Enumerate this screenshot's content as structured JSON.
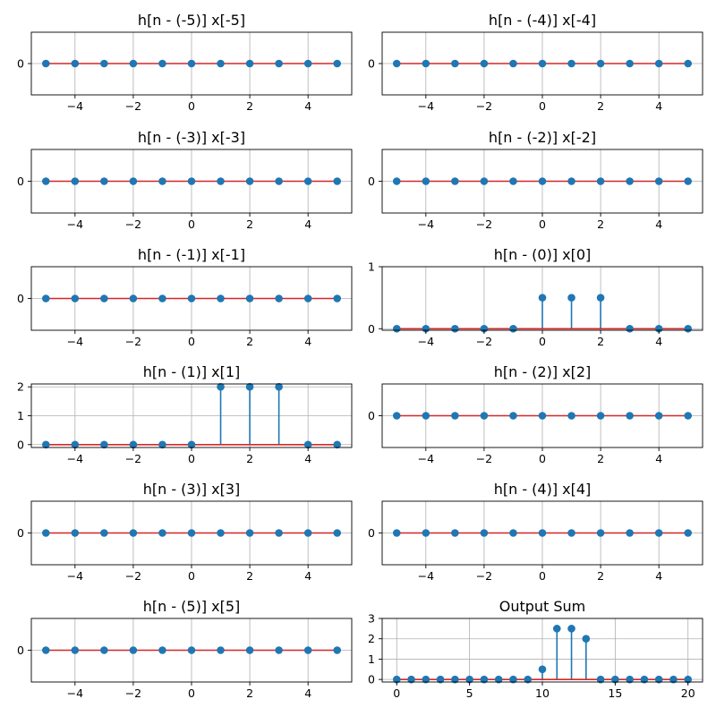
{
  "colors": {
    "stem": "#1f77b4",
    "marker": "#1f77b4",
    "baseline": "#d62728",
    "grid": "#b0b0b0",
    "axis": "#000000"
  },
  "chart_data": [
    {
      "type": "stem",
      "title": "h[n - (-5)] x[-5]",
      "x": [
        -5,
        -4,
        -3,
        -2,
        -1,
        0,
        1,
        2,
        3,
        4,
        5
      ],
      "y": [
        0,
        0,
        0,
        0,
        0,
        0,
        0,
        0,
        0,
        0,
        0
      ],
      "xticks": [
        -4,
        -2,
        0,
        2,
        4
      ],
      "xtick_labels": [
        "−4",
        "−2",
        "0",
        "2",
        "4"
      ],
      "yticks": [
        0
      ],
      "ytick_labels": [
        "0"
      ],
      "xlim": [
        -5.5,
        5.5
      ],
      "ylim": [
        -1.1,
        1.1
      ],
      "grid": true
    },
    {
      "type": "stem",
      "title": "h[n - (-4)] x[-4]",
      "x": [
        -5,
        -4,
        -3,
        -2,
        -1,
        0,
        1,
        2,
        3,
        4,
        5
      ],
      "y": [
        0,
        0,
        0,
        0,
        0,
        0,
        0,
        0,
        0,
        0,
        0
      ],
      "xticks": [
        -4,
        -2,
        0,
        2,
        4
      ],
      "xtick_labels": [
        "−4",
        "−2",
        "0",
        "2",
        "4"
      ],
      "yticks": [
        0
      ],
      "ytick_labels": [
        "0"
      ],
      "xlim": [
        -5.5,
        5.5
      ],
      "ylim": [
        -1.1,
        1.1
      ],
      "grid": true
    },
    {
      "type": "stem",
      "title": "h[n - (-3)] x[-3]",
      "x": [
        -5,
        -4,
        -3,
        -2,
        -1,
        0,
        1,
        2,
        3,
        4,
        5
      ],
      "y": [
        0,
        0,
        0,
        0,
        0,
        0,
        0,
        0,
        0,
        0,
        0
      ],
      "xticks": [
        -4,
        -2,
        0,
        2,
        4
      ],
      "xtick_labels": [
        "−4",
        "−2",
        "0",
        "2",
        "4"
      ],
      "yticks": [
        0
      ],
      "ytick_labels": [
        "0"
      ],
      "xlim": [
        -5.5,
        5.5
      ],
      "ylim": [
        -1.1,
        1.1
      ],
      "grid": true
    },
    {
      "type": "stem",
      "title": "h[n - (-2)] x[-2]",
      "x": [
        -5,
        -4,
        -3,
        -2,
        -1,
        0,
        1,
        2,
        3,
        4,
        5
      ],
      "y": [
        0,
        0,
        0,
        0,
        0,
        0,
        0,
        0,
        0,
        0,
        0
      ],
      "xticks": [
        -4,
        -2,
        0,
        2,
        4
      ],
      "xtick_labels": [
        "−4",
        "−2",
        "0",
        "2",
        "4"
      ],
      "yticks": [
        0
      ],
      "ytick_labels": [
        "0"
      ],
      "xlim": [
        -5.5,
        5.5
      ],
      "ylim": [
        -1.1,
        1.1
      ],
      "grid": true
    },
    {
      "type": "stem",
      "title": "h[n - (-1)] x[-1]",
      "x": [
        -5,
        -4,
        -3,
        -2,
        -1,
        0,
        1,
        2,
        3,
        4,
        5
      ],
      "y": [
        0,
        0,
        0,
        0,
        0,
        0,
        0,
        0,
        0,
        0,
        0
      ],
      "xticks": [
        -4,
        -2,
        0,
        2,
        4
      ],
      "xtick_labels": [
        "−4",
        "−2",
        "0",
        "2",
        "4"
      ],
      "yticks": [
        0
      ],
      "ytick_labels": [
        "0"
      ],
      "xlim": [
        -5.5,
        5.5
      ],
      "ylim": [
        -1.1,
        1.1
      ],
      "grid": true
    },
    {
      "type": "stem",
      "title": "h[n - (0)] x[0]",
      "x": [
        -5,
        -4,
        -3,
        -2,
        -1,
        0,
        1,
        2,
        3,
        4,
        5
      ],
      "y": [
        0,
        0,
        0,
        0,
        0,
        0.5,
        0.5,
        0.5,
        0,
        0,
        0
      ],
      "xticks": [
        -4,
        -2,
        0,
        2,
        4
      ],
      "xtick_labels": [
        "−4",
        "−2",
        "0",
        "2",
        "4"
      ],
      "yticks": [
        0,
        1
      ],
      "ytick_labels": [
        "0",
        "1"
      ],
      "xlim": [
        -5.5,
        5.5
      ],
      "ylim": [
        -0.025,
        1.0
      ],
      "grid": true
    },
    {
      "type": "stem",
      "title": "h[n - (1)] x[1]",
      "x": [
        -5,
        -4,
        -3,
        -2,
        -1,
        0,
        1,
        2,
        3,
        4,
        5
      ],
      "y": [
        0,
        0,
        0,
        0,
        0,
        0,
        2,
        2,
        2,
        0,
        0
      ],
      "xticks": [
        -4,
        -2,
        0,
        2,
        4
      ],
      "xtick_labels": [
        "−4",
        "−2",
        "0",
        "2",
        "4"
      ],
      "yticks": [
        0,
        1,
        2
      ],
      "ytick_labels": [
        "0",
        "1",
        "2"
      ],
      "xlim": [
        -5.5,
        5.5
      ],
      "ylim": [
        -0.1,
        2.1
      ],
      "grid": true
    },
    {
      "type": "stem",
      "title": "h[n - (2)] x[2]",
      "x": [
        -5,
        -4,
        -3,
        -2,
        -1,
        0,
        1,
        2,
        3,
        4,
        5
      ],
      "y": [
        0,
        0,
        0,
        0,
        0,
        0,
        0,
        0,
        0,
        0,
        0
      ],
      "xticks": [
        -4,
        -2,
        0,
        2,
        4
      ],
      "xtick_labels": [
        "−4",
        "−2",
        "0",
        "2",
        "4"
      ],
      "yticks": [
        0
      ],
      "ytick_labels": [
        "0"
      ],
      "xlim": [
        -5.5,
        5.5
      ],
      "ylim": [
        -1.1,
        1.1
      ],
      "grid": true
    },
    {
      "type": "stem",
      "title": "h[n - (3)] x[3]",
      "x": [
        -5,
        -4,
        -3,
        -2,
        -1,
        0,
        1,
        2,
        3,
        4,
        5
      ],
      "y": [
        0,
        0,
        0,
        0,
        0,
        0,
        0,
        0,
        0,
        0,
        0
      ],
      "xticks": [
        -4,
        -2,
        0,
        2,
        4
      ],
      "xtick_labels": [
        "−4",
        "−2",
        "0",
        "2",
        "4"
      ],
      "yticks": [
        0
      ],
      "ytick_labels": [
        "0"
      ],
      "xlim": [
        -5.5,
        5.5
      ],
      "ylim": [
        -1.1,
        1.1
      ],
      "grid": true
    },
    {
      "type": "stem",
      "title": "h[n - (4)] x[4]",
      "x": [
        -5,
        -4,
        -3,
        -2,
        -1,
        0,
        1,
        2,
        3,
        4,
        5
      ],
      "y": [
        0,
        0,
        0,
        0,
        0,
        0,
        0,
        0,
        0,
        0,
        0
      ],
      "xticks": [
        -4,
        -2,
        0,
        2,
        4
      ],
      "xtick_labels": [
        "−4",
        "−2",
        "0",
        "2",
        "4"
      ],
      "yticks": [
        0
      ],
      "ytick_labels": [
        "0"
      ],
      "xlim": [
        -5.5,
        5.5
      ],
      "ylim": [
        -1.1,
        1.1
      ],
      "grid": true
    },
    {
      "type": "stem",
      "title": "h[n - (5)] x[5]",
      "x": [
        -5,
        -4,
        -3,
        -2,
        -1,
        0,
        1,
        2,
        3,
        4,
        5
      ],
      "y": [
        0,
        0,
        0,
        0,
        0,
        0,
        0,
        0,
        0,
        0,
        0
      ],
      "xticks": [
        -4,
        -2,
        0,
        2,
        4
      ],
      "xtick_labels": [
        "−4",
        "−2",
        "0",
        "2",
        "4"
      ],
      "yticks": [
        0
      ],
      "ytick_labels": [
        "0"
      ],
      "xlim": [
        -5.5,
        5.5
      ],
      "ylim": [
        -1.1,
        1.1
      ],
      "grid": true
    },
    {
      "type": "stem",
      "title": "Output Sum",
      "x": [
        0,
        1,
        2,
        3,
        4,
        5,
        6,
        7,
        8,
        9,
        10,
        11,
        12,
        13,
        14,
        15,
        16,
        17,
        18,
        19,
        20
      ],
      "y": [
        0,
        0,
        0,
        0,
        0,
        0,
        0,
        0,
        0,
        0,
        0.5,
        2.5,
        2.5,
        2,
        0,
        0,
        0,
        0,
        0,
        0,
        0
      ],
      "xticks": [
        0,
        5,
        10,
        15,
        20
      ],
      "xtick_labels": [
        "0",
        "5",
        "10",
        "15",
        "20"
      ],
      "yticks": [
        0,
        1,
        2,
        3
      ],
      "ytick_labels": [
        "0",
        "1",
        "2",
        "3"
      ],
      "xlim": [
        -1,
        21
      ],
      "ylim": [
        -0.125,
        3.0
      ],
      "grid": true
    }
  ]
}
